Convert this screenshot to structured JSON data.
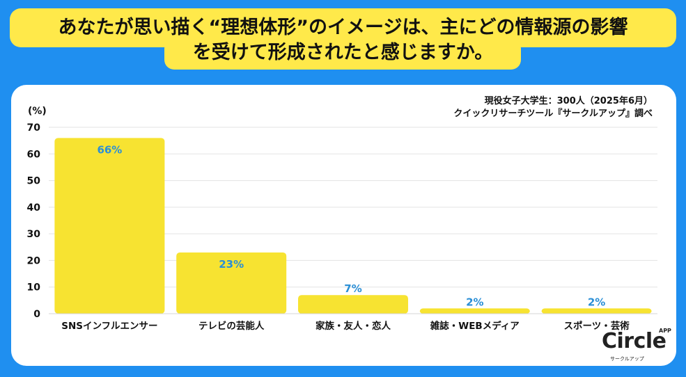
{
  "title": {
    "line1": "あなたが思い描く“理想体形”のイメージは、主にどの情報源の影響",
    "line2": "を受けて形成されたと感じますか。"
  },
  "source": {
    "line1": "現役女子大学生：300人（2025年6月）",
    "line2": "クイックリサーチツール『サークルアップ』調べ"
  },
  "logo": {
    "main": "Circle",
    "tag": "APP",
    "sub": "サークルアップ"
  },
  "colors": {
    "background": "#1f8ff0",
    "title_bg": "#ffe94a",
    "bar": "#f7e331",
    "label": "#2b8fd6"
  },
  "chart_data": {
    "type": "bar",
    "unit_label": "(%)",
    "categories": [
      "SNSインフルエンサー",
      "テレビの芸能人",
      "家族・友人・恋人",
      "雑誌・WEBメディア",
      "スポーツ・芸術"
    ],
    "values": [
      66,
      23,
      7,
      2,
      2
    ],
    "data_labels": [
      "66%",
      "23%",
      "7%",
      "2%",
      "2%"
    ],
    "ylim": [
      0,
      70
    ],
    "yticks": [
      0,
      10,
      20,
      30,
      40,
      50,
      60,
      70
    ],
    "grid": true
  }
}
